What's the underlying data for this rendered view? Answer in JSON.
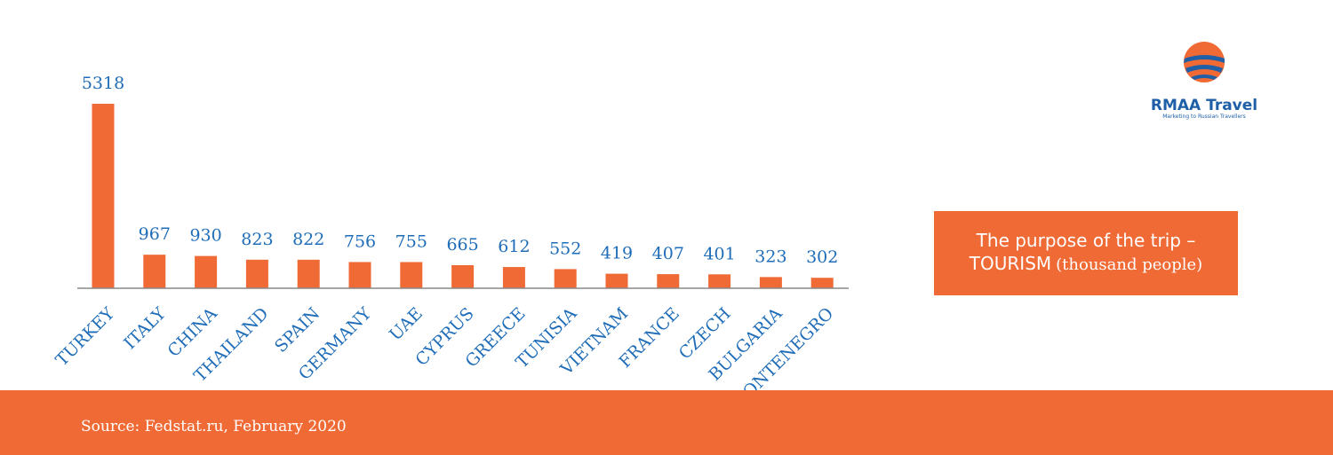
{
  "chart_data": {
    "type": "bar",
    "title_lines": [
      "The purpose of the trip –",
      "TOURISM"
    ],
    "unit": "(thousand people)",
    "categories": [
      "TURKEY",
      "ITALY",
      "CHINA",
      "THAILAND",
      "SPAIN",
      "GERMANY",
      "UAE",
      "CYPRUS",
      "GREECE",
      "TUNISIA",
      "VIETNAM",
      "FRANCE",
      "CZECH",
      "BULGARIA",
      "MONTENEGRO"
    ],
    "values": [
      5318,
      967,
      930,
      823,
      822,
      756,
      755,
      665,
      612,
      552,
      419,
      407,
      401,
      323,
      302
    ],
    "color": "#f06a35",
    "source": "Source: Fedstat.ru, February 2020"
  },
  "logo": {
    "name": "RMAA Travel",
    "tagline": "Marketing to Russian Travellers"
  }
}
